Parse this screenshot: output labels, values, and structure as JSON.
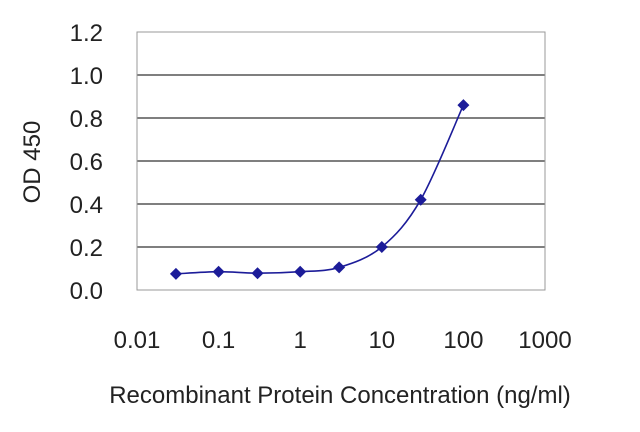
{
  "chart_data": {
    "type": "line",
    "xscale": "log",
    "xlabel": "Recombinant Protein Concentration (ng/ml)",
    "ylabel": "OD 450",
    "xlim": [
      0.01,
      1000
    ],
    "ylim": [
      0,
      1.2
    ],
    "x_ticks": [
      "0.01",
      "0.1",
      "1",
      "10",
      "100",
      "1000"
    ],
    "y_ticks": [
      "0.0",
      "0.2",
      "0.4",
      "0.6",
      "0.8",
      "1.0",
      "1.2"
    ],
    "grid": "horizontal",
    "series": [
      {
        "color": "#1c1c99",
        "marker": "diamond",
        "x": [
          0.03,
          0.1,
          0.3,
          1,
          3,
          10,
          30,
          100
        ],
        "y": [
          0.075,
          0.085,
          0.078,
          0.085,
          0.105,
          0.2,
          0.42,
          0.86
        ]
      }
    ]
  },
  "colors": {
    "line": "#1c1c99",
    "grid": "#7f7f7f",
    "frame": "#999999"
  }
}
